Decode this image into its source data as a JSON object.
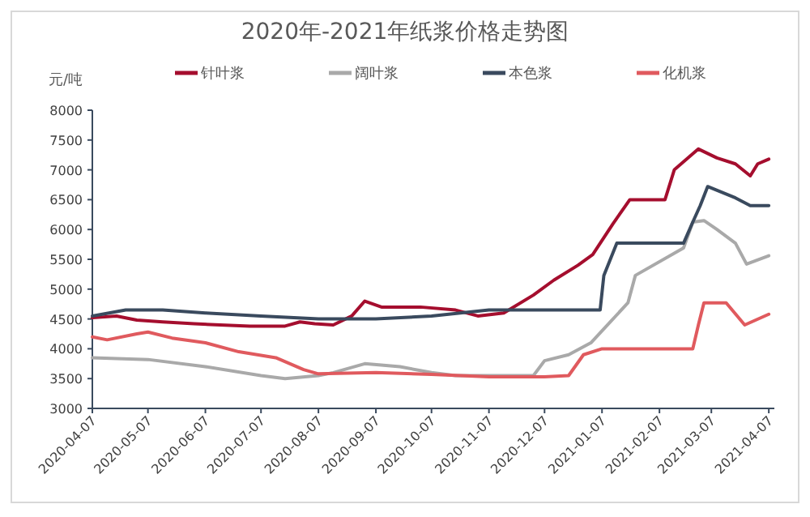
{
  "chart_data": {
    "type": "line",
    "title": "2020年-2021年纸浆价格走势图",
    "ylabel": "元/吨",
    "legend": "top",
    "grid": false,
    "marker": "none",
    "line_style": "solid",
    "ylim": [
      3000,
      8000
    ],
    "yticks": [
      3000,
      3500,
      4000,
      4500,
      5000,
      5500,
      6000,
      6500,
      7000,
      7500,
      8000
    ],
    "xlim": [
      "2020-04-07",
      "2021-04-10"
    ],
    "xticks": [
      "2020-04-07",
      "2020-05-07",
      "2020-06-07",
      "2020-07-07",
      "2020-08-07",
      "2020-09-07",
      "2020-10-07",
      "2020-11-07",
      "2020-12-07",
      "2021-01-07",
      "2021-02-07",
      "2021-03-07",
      "2021-04-07"
    ],
    "series": [
      {
        "name": "针叶浆",
        "color": "#a50e2e",
        "x": [
          "2020-04-07",
          "2020-04-20",
          "2020-05-01",
          "2020-05-15",
          "2020-06-01",
          "2020-06-15",
          "2020-07-01",
          "2020-07-20",
          "2020-07-28",
          "2020-08-05",
          "2020-08-15",
          "2020-08-25",
          "2020-09-01",
          "2020-09-10",
          "2020-10-01",
          "2020-10-20",
          "2020-11-01",
          "2020-11-15",
          "2020-12-01",
          "2020-12-12",
          "2020-12-25",
          "2021-01-02",
          "2021-01-13",
          "2021-01-22",
          "2021-02-10",
          "2021-02-15",
          "2021-02-28",
          "2021-03-10",
          "2021-03-20",
          "2021-03-28",
          "2021-04-01",
          "2021-04-07"
        ],
        "values": [
          4520,
          4550,
          4480,
          4450,
          4420,
          4400,
          4380,
          4380,
          4450,
          4420,
          4400,
          4550,
          4800,
          4700,
          4700,
          4650,
          4550,
          4600,
          4900,
          5150,
          5400,
          5580,
          6100,
          6500,
          6500,
          7000,
          7350,
          7200,
          7100,
          6900,
          7100,
          7180
        ]
      },
      {
        "name": "阔叶浆",
        "color": "#a9a9a9",
        "x": [
          "2020-04-07",
          "2020-05-07",
          "2020-06-07",
          "2020-07-07",
          "2020-07-20",
          "2020-08-07",
          "2020-08-15",
          "2020-09-01",
          "2020-09-20",
          "2020-10-07",
          "2020-10-20",
          "2020-11-15",
          "2020-12-01",
          "2020-12-07",
          "2020-12-20",
          "2021-01-01",
          "2021-01-10",
          "2021-01-21",
          "2021-01-25",
          "2021-02-20",
          "2021-02-25",
          "2021-03-03",
          "2021-03-10",
          "2021-03-20",
          "2021-03-26",
          "2021-04-07"
        ],
        "values": [
          3850,
          3820,
          3700,
          3550,
          3500,
          3550,
          3600,
          3750,
          3700,
          3600,
          3550,
          3550,
          3550,
          3800,
          3900,
          4100,
          4400,
          4770,
          5230,
          5690,
          6125,
          6150,
          6000,
          5770,
          5420,
          5560
        ]
      },
      {
        "name": "本色浆",
        "color": "#3a4a5e",
        "x": [
          "2020-04-07",
          "2020-04-25",
          "2020-05-15",
          "2020-06-07",
          "2020-07-07",
          "2020-08-07",
          "2020-09-07",
          "2020-10-07",
          "2020-11-07",
          "2020-12-07",
          "2021-01-06",
          "2021-01-08",
          "2021-01-15",
          "2021-02-20",
          "2021-02-25",
          "2021-03-01",
          "2021-03-05",
          "2021-03-20",
          "2021-03-28",
          "2021-04-07"
        ],
        "values": [
          4550,
          4650,
          4650,
          4600,
          4550,
          4500,
          4500,
          4550,
          4650,
          4650,
          4650,
          5230,
          5770,
          5770,
          6125,
          6400,
          6720,
          6530,
          6400,
          6400
        ]
      },
      {
        "name": "化机浆",
        "color": "#e05a5e",
        "x": [
          "2020-04-07",
          "2020-04-15",
          "2020-05-01",
          "2020-05-07",
          "2020-05-20",
          "2020-06-07",
          "2020-06-25",
          "2020-07-15",
          "2020-07-30",
          "2020-08-07",
          "2020-09-07",
          "2020-10-07",
          "2020-11-07",
          "2020-12-07",
          "2020-12-20",
          "2020-12-28",
          "2021-01-07",
          "2021-02-25",
          "2021-02-28",
          "2021-03-03",
          "2021-03-15",
          "2021-03-25",
          "2021-04-07"
        ],
        "values": [
          4200,
          4150,
          4250,
          4280,
          4180,
          4100,
          3950,
          3850,
          3650,
          3580,
          3600,
          3570,
          3530,
          3530,
          3550,
          3900,
          4000,
          4000,
          4400,
          4770,
          4770,
          4400,
          4580
        ]
      }
    ]
  }
}
